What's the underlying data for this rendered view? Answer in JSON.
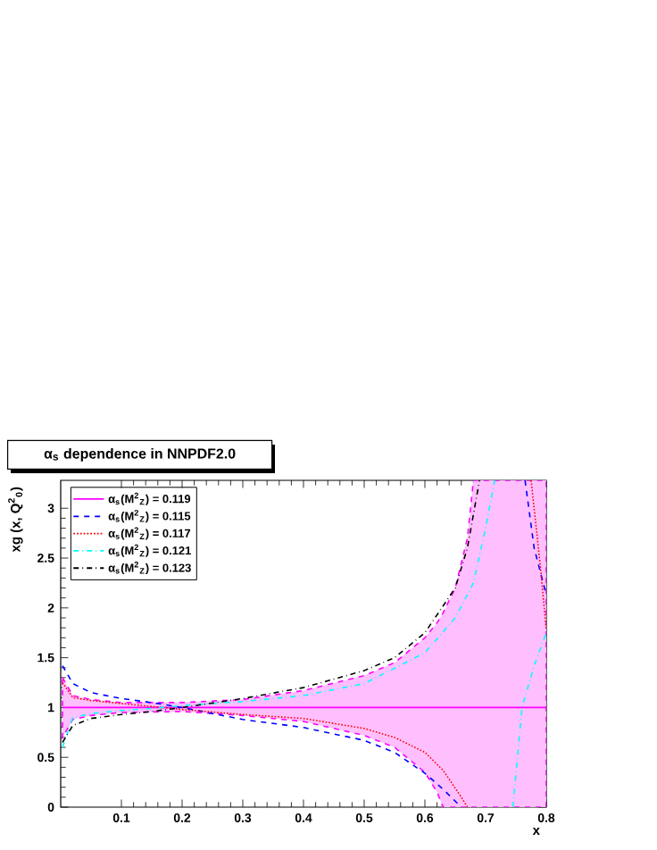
{
  "chart_data": {
    "type": "line",
    "title": "α$_{s}$ dependence in NNPDF2.0",
    "xlabel": "x",
    "ylabel": "xg (x, Q$^{2}$$_{0}$)",
    "xlim": [
      0,
      0.8
    ],
    "ylim": [
      0,
      3.28
    ],
    "xticks": [
      0.1,
      0.2,
      0.3,
      0.4,
      0.5,
      0.6,
      0.7,
      0.8
    ],
    "yticks": [
      0,
      0.5,
      1,
      1.5,
      2,
      2.5,
      3
    ],
    "legend": "top left",
    "grid": false,
    "series": [
      {
        "name": "α$_{s}$(M$^{2}$$_{Z}$) = 0.119",
        "color": "#ff00ff",
        "line_style": "solid",
        "x": [
          0.003,
          0.02,
          0.05,
          0.1,
          0.2,
          0.3,
          0.4,
          0.5,
          0.55,
          0.6,
          0.62,
          0.63,
          0.65,
          0.67,
          0.68,
          0.7,
          0.75,
          0.8
        ],
        "values": [
          1,
          1,
          1,
          1,
          1,
          1,
          1,
          1,
          1,
          1,
          1,
          1,
          1,
          1,
          1,
          1,
          1,
          1
        ],
        "lower": [
          0.7,
          0.88,
          0.92,
          0.95,
          0.96,
          0.92,
          0.86,
          0.72,
          0.6,
          0.35,
          0.15,
          0,
          0,
          0,
          0,
          0,
          0,
          0
        ],
        "upper": [
          1.3,
          1.12,
          1.08,
          1.05,
          1.05,
          1.08,
          1.17,
          1.32,
          1.45,
          1.7,
          1.85,
          1.95,
          2.2,
          2.7,
          3.28,
          3.28,
          3.28,
          3.28
        ]
      },
      {
        "name": "α$_{s}$(M$^{2}$$_{Z}$) = 0.115",
        "color": "#0000ff",
        "line_style": "dashed",
        "x": [
          0.003,
          0.02,
          0.05,
          0.1,
          0.15,
          0.2,
          0.3,
          0.4,
          0.5,
          0.55,
          0.6,
          0.63,
          0.66,
          0.71,
          0.765,
          0.78,
          0.8
        ],
        "values": [
          1.42,
          1.24,
          1.15,
          1.09,
          1.05,
          1.0,
          0.88,
          0.8,
          0.67,
          0.55,
          0.34,
          0.18,
          0,
          null,
          3.28,
          2.6,
          2.13
        ]
      },
      {
        "name": "α$_{s}$(M$^{2}$$_{Z}$) = 0.117",
        "color": "#ff0000",
        "line_style": "dotted",
        "x": [
          0.003,
          0.02,
          0.05,
          0.1,
          0.15,
          0.2,
          0.3,
          0.4,
          0.5,
          0.55,
          0.6,
          0.63,
          0.66,
          0.67,
          0.72,
          0.775,
          0.79,
          0.8
        ],
        "values": [
          1.25,
          1.1,
          1.07,
          1.04,
          1.01,
          0.98,
          0.93,
          0.89,
          0.79,
          0.7,
          0.55,
          0.37,
          0.1,
          0,
          null,
          3.28,
          2.43,
          1.78
        ]
      },
      {
        "name": "α$_{s}$(M$^{2}$$_{Z}$) = 0.121",
        "color": "#00ffff",
        "line_style": "dashdot",
        "x": [
          0.003,
          0.02,
          0.05,
          0.1,
          0.15,
          0.2,
          0.3,
          0.4,
          0.5,
          0.6,
          0.65,
          0.68,
          0.7,
          0.715,
          0.73,
          0.745,
          0.76,
          0.78,
          0.8
        ],
        "values": [
          0.6,
          0.9,
          0.94,
          0.97,
          0.99,
          1.02,
          1.06,
          1.12,
          1.24,
          1.55,
          1.9,
          2.25,
          2.8,
          3.28,
          null,
          0,
          1.0,
          1.42,
          1.75
        ]
      },
      {
        "name": "α$_{s}$(M$^{2}$$_{Z}$) = 0.123",
        "color": "#000000",
        "line_style": "dashdot",
        "x": [
          0.003,
          0.02,
          0.05,
          0.1,
          0.15,
          0.2,
          0.3,
          0.4,
          0.5,
          0.55,
          0.6,
          0.65,
          0.67,
          0.69
        ],
        "values": [
          0.65,
          0.82,
          0.89,
          0.93,
          0.96,
          1.0,
          1.09,
          1.2,
          1.37,
          1.5,
          1.75,
          2.2,
          2.6,
          3.28
        ]
      }
    ]
  }
}
